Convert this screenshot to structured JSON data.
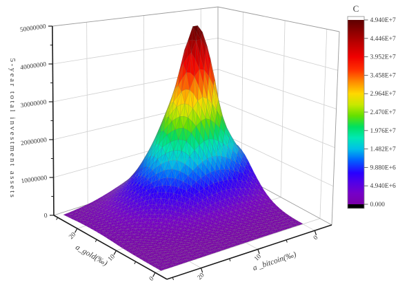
{
  "figure": {
    "background": "#ffffff",
    "border_color": "#c9c9c9"
  },
  "chart": {
    "z_axis": {
      "title": "5-year total investment assets",
      "tick_labels": [
        "0",
        "10000000",
        "20000000",
        "30000000",
        "40000000",
        "50000000"
      ],
      "range": [
        0,
        50000000
      ]
    },
    "gold_axis": {
      "title": "a_gold(‰)",
      "major_ticks": [
        20,
        10,
        0
      ],
      "minor_ticks": [
        25,
        15,
        5
      ],
      "range": [
        26,
        -3
      ]
    },
    "bitcoin_axis": {
      "title": "a _bitcoin(‰)",
      "major_ticks": [
        20,
        10,
        0
      ],
      "minor_ticks": [
        25,
        15,
        5
      ],
      "range": [
        26,
        -3
      ]
    },
    "colorbar": {
      "title": "C",
      "tick_labels": [
        "4.940E+7",
        "4.446E+7",
        "3.952E+7",
        "3.458E+7",
        "2.964E+7",
        "2.470E+7",
        "1.976E+7",
        "1.482E+7",
        "9.880E+6",
        "4.940E+6",
        "0.000"
      ],
      "above_color": "#ffffff",
      "below_color": "#000000"
    },
    "colormap": [
      {
        "f": 0.0,
        "color": "#7A00A8"
      },
      {
        "f": 0.06,
        "color": "#7600C8"
      },
      {
        "f": 0.12,
        "color": "#5000E8"
      },
      {
        "f": 0.17,
        "color": "#2800FF"
      },
      {
        "f": 0.24,
        "color": "#0064FF"
      },
      {
        "f": 0.3,
        "color": "#00C0E8"
      },
      {
        "f": 0.36,
        "color": "#00E8B4"
      },
      {
        "f": 0.42,
        "color": "#00E060"
      },
      {
        "f": 0.48,
        "color": "#64E000"
      },
      {
        "f": 0.54,
        "color": "#C8E800"
      },
      {
        "f": 0.6,
        "color": "#FFD800"
      },
      {
        "f": 0.66,
        "color": "#FF9000"
      },
      {
        "f": 0.73,
        "color": "#FF3000"
      },
      {
        "f": 0.8,
        "color": "#F00000"
      },
      {
        "f": 0.88,
        "color": "#B80000"
      },
      {
        "f": 1.0,
        "color": "#5E0000"
      }
    ],
    "mesh_line_color": "#6e6e6e",
    "grid_color": "#cfcfcf",
    "edge_color": "#9a9a9a",
    "axis_color": "#1a1a1a"
  },
  "chart_data": {
    "type": "surface3d",
    "x_label": "a_gold(‰)",
    "y_label": "a _bitcoin(‰)",
    "z_label": "5-year total investment assets",
    "x_values": [
      0,
      2.5,
      5,
      7.5,
      10,
      12.5,
      15,
      17.5,
      20,
      22.5,
      25
    ],
    "y_values": [
      0,
      2.5,
      5,
      7.5,
      10,
      12.5,
      15,
      17.5,
      20,
      22.5,
      25
    ],
    "z_unit": 1000000,
    "z_max": 49400000,
    "peak": {
      "x": 17.5,
      "y": 7.5,
      "z": 49400000
    },
    "note": "z values (in millions) estimated from the rendered surface; rows = x (a_gold), cols = y (a_bitcoin)",
    "z_values": [
      [
        0.06,
        0.08,
        0.09,
        0.1,
        0.09,
        0.08,
        0.06,
        0.04,
        0.03,
        0.02,
        0.01
      ],
      [
        0.16,
        0.21,
        0.25,
        0.26,
        0.25,
        0.21,
        0.16,
        0.11,
        0.06,
        0.04,
        0.03
      ],
      [
        0.52,
        0.71,
        0.85,
        0.91,
        0.85,
        0.71,
        0.52,
        0.34,
        0.2,
        0.11,
        0.06
      ],
      [
        1.5,
        2.1,
        2.5,
        2.7,
        2.5,
        2.1,
        1.5,
        0.93,
        0.53,
        0.27,
        0.13
      ],
      [
        3.5,
        5.1,
        6.4,
        6.9,
        6.4,
        5.1,
        3.5,
        2.2,
        1.2,
        0.59,
        0.26
      ],
      [
        6.9,
        10.5,
        13.7,
        15.1,
        13.7,
        10.5,
        6.9,
        4.1,
        2.2,
        1.1,
        0.46
      ],
      [
        10.9,
        17.6,
        25.7,
        30.5,
        25.7,
        17.6,
        10.9,
        6.2,
        3.2,
        1.5,
        0.65
      ],
      [
        12.8,
        18.5,
        43.0,
        49.4,
        33.5,
        21.8,
        12.8,
        7.1,
        3.7,
        1.7,
        0.7
      ],
      [
        10.9,
        17.6,
        25.7,
        30.5,
        25.7,
        17.6,
        10.9,
        6.2,
        3.2,
        1.5,
        0.65
      ],
      [
        6.9,
        10.5,
        13.7,
        15.1,
        13.7,
        10.5,
        6.9,
        4.1,
        2.2,
        1.1,
        0.46
      ],
      [
        3.5,
        5.1,
        6.4,
        6.9,
        6.4,
        5.1,
        3.5,
        2.2,
        1.2,
        0.59,
        0.26
      ]
    ]
  }
}
